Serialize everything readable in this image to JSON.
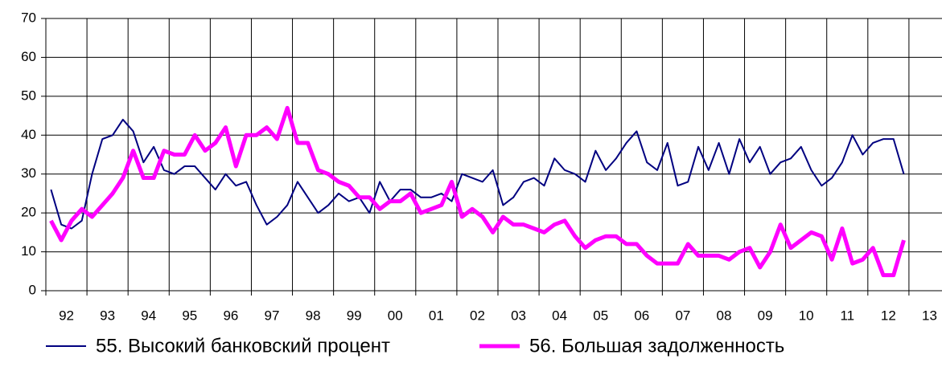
{
  "chart_data": {
    "type": "line",
    "x": [
      1992.125,
      1992.375,
      1992.625,
      1992.875,
      1993.125,
      1993.375,
      1993.625,
      1993.875,
      1994.125,
      1994.375,
      1994.625,
      1994.875,
      1995.125,
      1995.375,
      1995.625,
      1995.875,
      1996.125,
      1996.375,
      1996.625,
      1996.875,
      1997.125,
      1997.375,
      1997.625,
      1997.875,
      1998.125,
      1998.375,
      1998.625,
      1998.875,
      1999.125,
      1999.375,
      1999.625,
      1999.875,
      2000.125,
      2000.375,
      2000.625,
      2000.875,
      2001.125,
      2001.375,
      2001.625,
      2001.875,
      2002.125,
      2002.375,
      2002.625,
      2002.875,
      2003.125,
      2003.375,
      2003.625,
      2003.875,
      2004.125,
      2004.375,
      2004.625,
      2004.875,
      2005.125,
      2005.375,
      2005.625,
      2005.875,
      2006.125,
      2006.375,
      2006.625,
      2006.875,
      2007.125,
      2007.375,
      2007.625,
      2007.875,
      2008.125,
      2008.375,
      2008.625,
      2008.875,
      2009.125,
      2009.375,
      2009.625,
      2009.875,
      2010.125,
      2010.375,
      2010.625,
      2010.875,
      2011.125,
      2011.375,
      2011.625,
      2011.875,
      2012.125,
      2012.375,
      2012.625,
      2012.875
    ],
    "series": [
      {
        "name": "55. Высокий банковский процент",
        "color": "#000080",
        "width": 2,
        "values": [
          26,
          17,
          16,
          18,
          30,
          39,
          40,
          44,
          41,
          33,
          37,
          31,
          30,
          32,
          32,
          29,
          26,
          30,
          27,
          28,
          22,
          17,
          19,
          22,
          28,
          24,
          20,
          22,
          25,
          23,
          24,
          20,
          28,
          23,
          26,
          26,
          24,
          24,
          25,
          23,
          30,
          29,
          28,
          31,
          22,
          24,
          28,
          29,
          27,
          34,
          31,
          30,
          28,
          36,
          31,
          34,
          38,
          41,
          33,
          31,
          38,
          27,
          28,
          37,
          31,
          38,
          30,
          39,
          33,
          37,
          30,
          33,
          34,
          37,
          31,
          27,
          29,
          33,
          40,
          35,
          38,
          39,
          39,
          30
        ]
      },
      {
        "name": "56. Большая задолженность",
        "color": "#ff00ff",
        "width": 5,
        "values": [
          18,
          13,
          18,
          21,
          19,
          22,
          25,
          29,
          36,
          29,
          29,
          36,
          35,
          35,
          40,
          36,
          38,
          42,
          32,
          40,
          40,
          42,
          39,
          47,
          38,
          38,
          31,
          30,
          28,
          27,
          24,
          24,
          21,
          23,
          23,
          25,
          20,
          21,
          22,
          28,
          19,
          21,
          19,
          15,
          19,
          17,
          17,
          16,
          15,
          17,
          18,
          14,
          11,
          13,
          14,
          14,
          12,
          12,
          9,
          7,
          7,
          7,
          12,
          9,
          9,
          9,
          8,
          10,
          11,
          6,
          10,
          17,
          11,
          13,
          15,
          14,
          8,
          16,
          7,
          8,
          11,
          4,
          4,
          13
        ]
      }
    ],
    "xlim": [
      1992,
      2014
    ],
    "xticks": [
      {
        "value": 1992.5,
        "label": "92"
      },
      {
        "value": 1993.5,
        "label": "93"
      },
      {
        "value": 1994.5,
        "label": "94"
      },
      {
        "value": 1995.5,
        "label": "95"
      },
      {
        "value": 1996.5,
        "label": "96"
      },
      {
        "value": 1997.5,
        "label": "97"
      },
      {
        "value": 1998.5,
        "label": "98"
      },
      {
        "value": 1999.5,
        "label": "99"
      },
      {
        "value": 2000.5,
        "label": "00"
      },
      {
        "value": 2001.5,
        "label": "01"
      },
      {
        "value": 2002.5,
        "label": "02"
      },
      {
        "value": 2003.5,
        "label": "03"
      },
      {
        "value": 2004.5,
        "label": "04"
      },
      {
        "value": 2005.5,
        "label": "05"
      },
      {
        "value": 2006.5,
        "label": "06"
      },
      {
        "value": 2007.5,
        "label": "07"
      },
      {
        "value": 2008.5,
        "label": "08"
      },
      {
        "value": 2009.5,
        "label": "09"
      },
      {
        "value": 2010.5,
        "label": "10"
      },
      {
        "value": 2011.5,
        "label": "11"
      },
      {
        "value": 2012.5,
        "label": "12"
      },
      {
        "value": 2013.5,
        "label": "13"
      }
    ],
    "ylim": [
      0,
      70
    ],
    "yticks": [
      0,
      10,
      20,
      30,
      40,
      50,
      60,
      70
    ],
    "grid": true
  }
}
